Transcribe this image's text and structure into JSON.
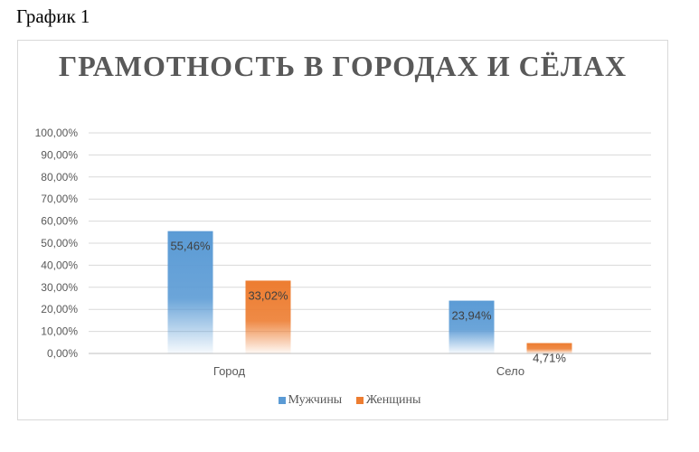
{
  "caption": "График 1",
  "chart_data": {
    "type": "bar",
    "title": "ГРАМОТНОСТЬ В ГОРОДАХ И СЁЛАХ",
    "categories": [
      "Город",
      "Село"
    ],
    "series": [
      {
        "name": "Мужчины",
        "values": [
          55.46,
          23.94
        ],
        "labels": [
          "55,46%",
          "23,94%"
        ],
        "color": "#5b9bd5"
      },
      {
        "name": "Женщины",
        "values": [
          33.02,
          4.71
        ],
        "labels": [
          "33,02%",
          "4,71%"
        ],
        "color": "#ed7d31"
      }
    ],
    "ylim": [
      0,
      100
    ],
    "yticks": [
      0,
      10,
      20,
      30,
      40,
      50,
      60,
      70,
      80,
      90,
      100
    ],
    "ytick_labels": [
      "0,00%",
      "10,00%",
      "20,00%",
      "30,00%",
      "40,00%",
      "50,00%",
      "60,00%",
      "70,00%",
      "80,00%",
      "90,00%",
      "100,00%"
    ],
    "xlabel": "",
    "ylabel": "",
    "grid": true,
    "legend": "bottom"
  }
}
